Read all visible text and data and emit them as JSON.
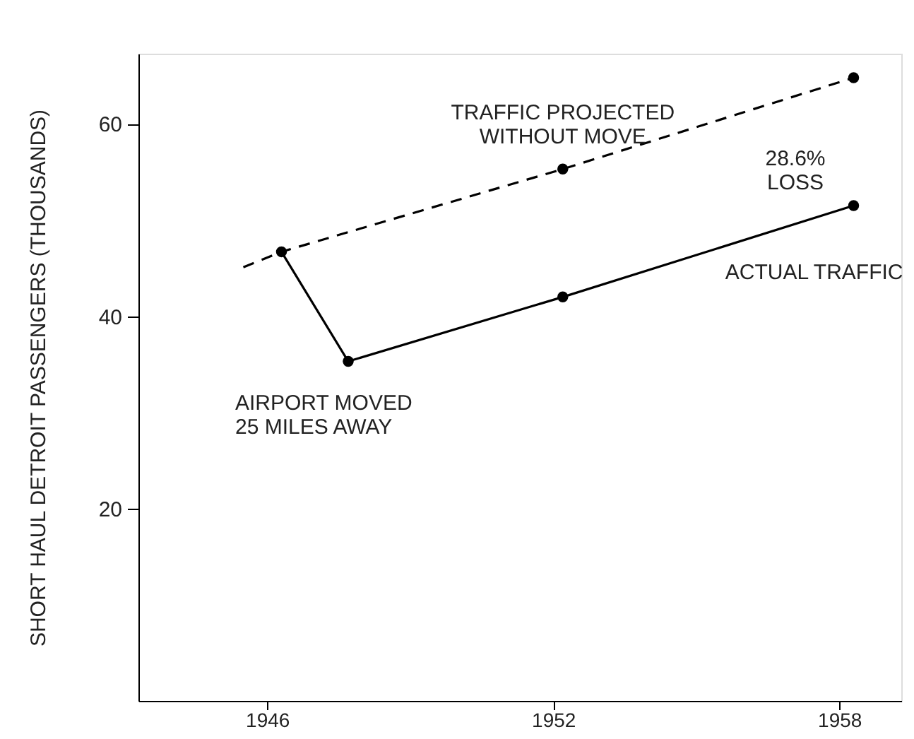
{
  "chart_data": {
    "type": "line",
    "ylabel": "SHORT HAUL DETROIT PASSENGERS (THOUSANDS)",
    "xlim": [
      1943.3,
      1959.3
    ],
    "xticks": [
      1946,
      1952,
      1958
    ],
    "ylim": [
      0,
      67.3
    ],
    "yticks": [
      20,
      40,
      60
    ],
    "grid": false,
    "series": [
      {
        "name": "TRAFFIC PROJECTED\nWITHOUT MOVE",
        "color": "#000000",
        "line_style": "dashed",
        "marker": "none",
        "x": [
          1945.5,
          1946.3,
          1952.2,
          1958.3
        ],
        "values": [
          45.1,
          46.7,
          55.3,
          64.8
        ]
      },
      {
        "type": "scatter",
        "color": "#000000",
        "marker": "circle",
        "x": [
          1952.2,
          1958.3
        ],
        "values": [
          55.3,
          64.8
        ]
      },
      {
        "name": "ACTUAL TRAFFIC",
        "color": "#000000",
        "line_style": "solid",
        "marker": "circle",
        "x": [
          1946.3,
          1947.7,
          1952.2,
          1958.3
        ],
        "values": [
          46.7,
          35.3,
          42.0,
          51.5
        ]
      }
    ],
    "annotations": [
      {
        "text": "AIRPORT MOVED\n25 MILES AWAY",
        "x": 1947.7,
        "y": 35.3
      },
      "28.6%\nLOSS"
    ]
  }
}
